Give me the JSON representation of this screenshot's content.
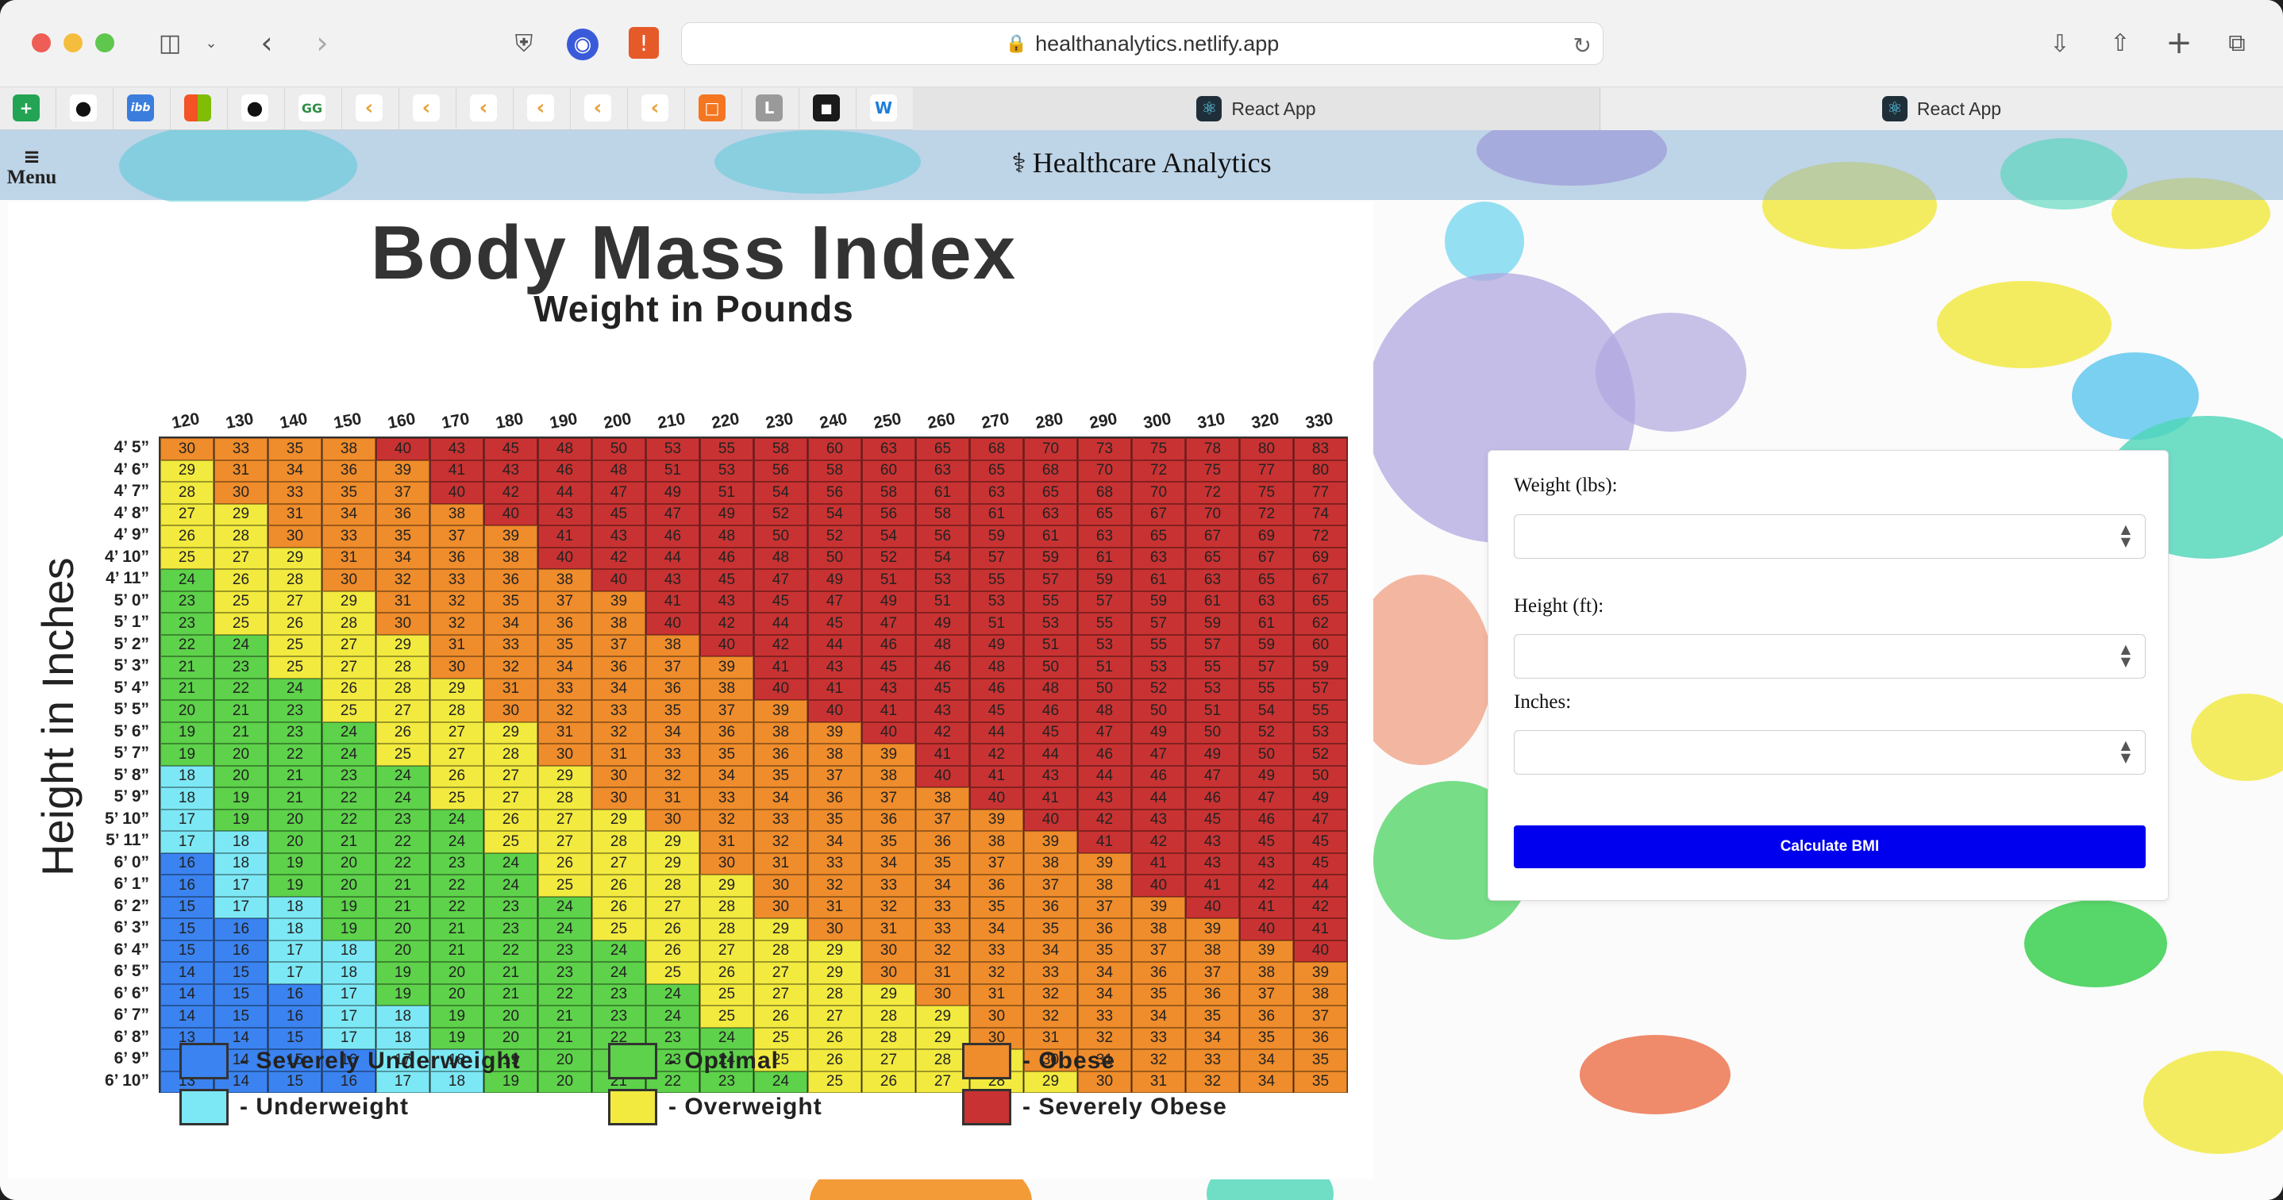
{
  "browser": {
    "url": "healthanalytics.netlify.app",
    "tabs": [
      {
        "label": "React App"
      },
      {
        "label": "React App"
      }
    ],
    "favorites": [
      "plus-sheet-icon",
      "github-icon",
      "ibb-icon",
      "microsoft-icon",
      "github-icon",
      "gfg-icon",
      "leetcode-icon",
      "leetcode-icon",
      "leetcode-icon",
      "leetcode-icon",
      "leetcode-icon",
      "leetcode-icon",
      "hackerrank-icon",
      "l-icon",
      "codechef-icon",
      "w-icon"
    ]
  },
  "header": {
    "menu_label": "Menu",
    "brand": "Healthcare Analytics"
  },
  "chart": {
    "title": "Body Mass Index",
    "subtitle": "Weight in Pounds",
    "ylabel": "Height in Inches",
    "legend": [
      {
        "label": "- Severely Underweight",
        "color": "#3b83f0"
      },
      {
        "label": "- Underweight",
        "color": "#7de8f5"
      },
      {
        "label": "- Optimal",
        "color": "#5dd24a"
      },
      {
        "label": "- Overweight",
        "color": "#f2ea3e"
      },
      {
        "label": "- Obese",
        "color": "#ef8c2b"
      },
      {
        "label": "- Severely Obese",
        "color": "#c93232"
      }
    ]
  },
  "chart_data": {
    "type": "table",
    "title": "Body Mass Index",
    "xlabel": "Weight in Pounds",
    "ylabel": "Height in Inches",
    "weights": [
      120,
      130,
      140,
      150,
      160,
      170,
      180,
      190,
      200,
      210,
      220,
      230,
      240,
      250,
      260,
      270,
      280,
      290,
      300,
      310,
      320,
      330
    ],
    "heights": [
      "4’ 5”",
      "4’ 6”",
      "4’ 7”",
      "4’ 8”",
      "4’ 9”",
      "4’ 10”",
      "4’ 11”",
      "5’ 0”",
      "5’ 1”",
      "5’ 2”",
      "5’ 3”",
      "5’ 4”",
      "5’ 5”",
      "5’ 6”",
      "5’ 7”",
      "5’ 8”",
      "5’ 9”",
      "5’ 10”",
      "5’ 11”",
      "6’ 0”",
      "6’ 1”",
      "6’ 2”",
      "6’ 3”",
      "6’ 4”",
      "6’ 5”",
      "6’ 6”",
      "6’ 7”",
      "6’ 8”",
      "6’ 9”",
      "6’ 10”"
    ],
    "values": [
      [
        30,
        33,
        35,
        38,
        40,
        43,
        45,
        48,
        50,
        53,
        55,
        58,
        60,
        63,
        65,
        68,
        70,
        73,
        75,
        78,
        80,
        83
      ],
      [
        29,
        31,
        34,
        36,
        39,
        41,
        43,
        46,
        48,
        51,
        53,
        56,
        58,
        60,
        63,
        65,
        68,
        70,
        72,
        75,
        77,
        80
      ],
      [
        28,
        30,
        33,
        35,
        37,
        40,
        42,
        44,
        47,
        49,
        51,
        54,
        56,
        58,
        61,
        63,
        65,
        68,
        70,
        72,
        75,
        77
      ],
      [
        27,
        29,
        31,
        34,
        36,
        38,
        40,
        43,
        45,
        47,
        49,
        52,
        54,
        56,
        58,
        61,
        63,
        65,
        67,
        70,
        72,
        74
      ],
      [
        26,
        28,
        30,
        33,
        35,
        37,
        39,
        41,
        43,
        46,
        48,
        50,
        52,
        54,
        56,
        59,
        61,
        63,
        65,
        67,
        69,
        72
      ],
      [
        25,
        27,
        29,
        31,
        34,
        36,
        38,
        40,
        42,
        44,
        46,
        48,
        50,
        52,
        54,
        57,
        59,
        61,
        63,
        65,
        67,
        69
      ],
      [
        24,
        26,
        28,
        30,
        32,
        33,
        36,
        38,
        40,
        43,
        45,
        47,
        49,
        51,
        53,
        55,
        57,
        59,
        61,
        63,
        65,
        67
      ],
      [
        23,
        25,
        27,
        29,
        31,
        32,
        35,
        37,
        39,
        41,
        43,
        45,
        47,
        49,
        51,
        53,
        55,
        57,
        59,
        61,
        63,
        65
      ],
      [
        23,
        25,
        26,
        28,
        30,
        32,
        34,
        36,
        38,
        40,
        42,
        44,
        45,
        47,
        49,
        51,
        53,
        55,
        57,
        59,
        61,
        62
      ],
      [
        22,
        24,
        25,
        27,
        29,
        31,
        33,
        35,
        37,
        38,
        40,
        42,
        44,
        46,
        48,
        49,
        51,
        53,
        55,
        57,
        59,
        60
      ],
      [
        21,
        23,
        25,
        27,
        28,
        30,
        32,
        34,
        36,
        37,
        39,
        41,
        43,
        45,
        46,
        48,
        50,
        51,
        53,
        55,
        57,
        59
      ],
      [
        21,
        22,
        24,
        26,
        28,
        29,
        31,
        33,
        34,
        36,
        38,
        40,
        41,
        43,
        45,
        46,
        48,
        50,
        52,
        53,
        55,
        57
      ],
      [
        20,
        21,
        23,
        25,
        27,
        28,
        30,
        32,
        33,
        35,
        37,
        39,
        40,
        41,
        43,
        45,
        46,
        48,
        50,
        51,
        54,
        55
      ],
      [
        19,
        21,
        23,
        24,
        26,
        27,
        29,
        31,
        32,
        34,
        36,
        38,
        39,
        40,
        42,
        44,
        45,
        47,
        49,
        50,
        52,
        53
      ],
      [
        19,
        20,
        22,
        24,
        25,
        27,
        28,
        30,
        31,
        33,
        35,
        36,
        38,
        39,
        41,
        42,
        44,
        46,
        47,
        49,
        50,
        52
      ],
      [
        18,
        20,
        21,
        23,
        24,
        26,
        27,
        29,
        30,
        32,
        34,
        35,
        37,
        38,
        40,
        41,
        43,
        44,
        46,
        47,
        49,
        50
      ],
      [
        18,
        19,
        21,
        22,
        24,
        25,
        27,
        28,
        30,
        31,
        33,
        34,
        36,
        37,
        38,
        40,
        41,
        43,
        44,
        46,
        47,
        49
      ],
      [
        17,
        19,
        20,
        22,
        23,
        24,
        26,
        27,
        29,
        30,
        32,
        33,
        35,
        36,
        37,
        39,
        40,
        42,
        43,
        45,
        46,
        47
      ],
      [
        17,
        18,
        20,
        21,
        22,
        24,
        25,
        27,
        28,
        29,
        31,
        32,
        34,
        35,
        36,
        38,
        39,
        41,
        42,
        43,
        45,
        45
      ],
      [
        16,
        18,
        19,
        20,
        22,
        23,
        24,
        26,
        27,
        29,
        30,
        31,
        33,
        34,
        35,
        37,
        38,
        39,
        41,
        43,
        43,
        45
      ],
      [
        16,
        17,
        19,
        20,
        21,
        22,
        24,
        25,
        26,
        28,
        29,
        30,
        32,
        33,
        34,
        36,
        37,
        38,
        40,
        41,
        42,
        44
      ],
      [
        15,
        17,
        18,
        19,
        21,
        22,
        23,
        24,
        26,
        27,
        28,
        30,
        31,
        32,
        33,
        35,
        36,
        37,
        39,
        40,
        41,
        42
      ],
      [
        15,
        16,
        18,
        19,
        20,
        21,
        23,
        24,
        25,
        26,
        28,
        29,
        30,
        31,
        33,
        34,
        35,
        36,
        38,
        39,
        40,
        41
      ],
      [
        15,
        16,
        17,
        18,
        20,
        21,
        22,
        23,
        24,
        26,
        27,
        28,
        29,
        30,
        32,
        33,
        34,
        35,
        37,
        38,
        39,
        40
      ],
      [
        14,
        15,
        17,
        18,
        19,
        20,
        21,
        23,
        24,
        25,
        26,
        27,
        29,
        30,
        31,
        32,
        33,
        34,
        36,
        37,
        38,
        39
      ],
      [
        14,
        15,
        16,
        17,
        19,
        20,
        21,
        22,
        23,
        24,
        25,
        27,
        28,
        29,
        30,
        31,
        32,
        34,
        35,
        36,
        37,
        38
      ],
      [
        14,
        15,
        16,
        17,
        18,
        19,
        20,
        21,
        23,
        24,
        25,
        26,
        27,
        28,
        29,
        30,
        32,
        33,
        34,
        35,
        36,
        37
      ],
      [
        13,
        14,
        15,
        17,
        18,
        19,
        20,
        21,
        22,
        23,
        24,
        25,
        26,
        28,
        29,
        30,
        31,
        32,
        33,
        34,
        35,
        36
      ],
      [
        13,
        14,
        15,
        16,
        17,
        18,
        19,
        20,
        21,
        23,
        24,
        25,
        26,
        27,
        28,
        29,
        30,
        31,
        32,
        33,
        34,
        35
      ],
      [
        13,
        14,
        15,
        16,
        17,
        18,
        19,
        20,
        21,
        22,
        23,
        24,
        25,
        26,
        27,
        28,
        29,
        30,
        31,
        32,
        34,
        35
      ]
    ],
    "color_key": {
      "severely_underweight": "#3b83f0",
      "underweight": "#7de8f5",
      "optimal": "#5dd24a",
      "overweight": "#f2ea3e",
      "obese": "#ef8c2b",
      "severely_obese": "#c93232"
    }
  },
  "form": {
    "weight_label": "Weight (lbs):",
    "weight_value": "",
    "height_label": "Height (ft):",
    "height_value": "",
    "inches_label": "Inches:",
    "inches_value": "",
    "submit_label": "Calculate BMI"
  }
}
